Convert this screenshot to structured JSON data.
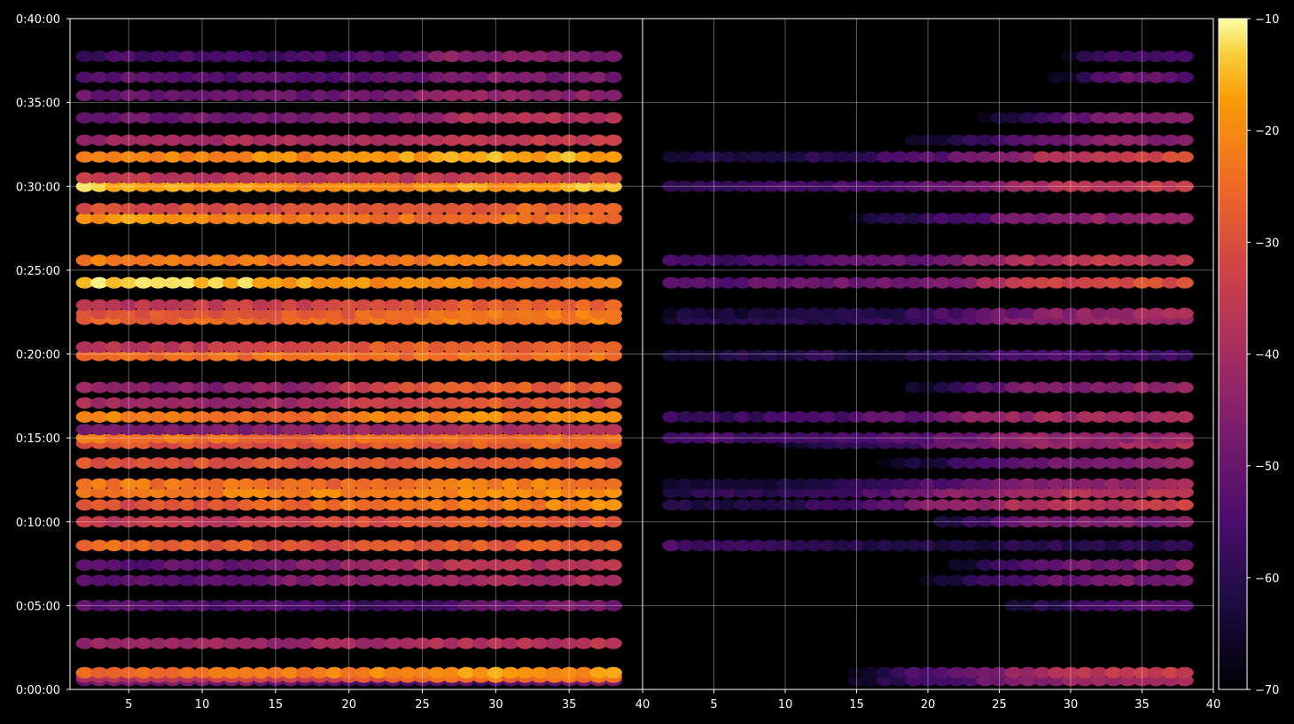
{
  "chart_data": {
    "type": "heatmap",
    "title": "",
    "xlabel": "",
    "ylabel": "",
    "grid": true,
    "background": "#000000",
    "colormap": "inferno",
    "panels": [
      {
        "name": "",
        "xlim": [
          1,
          40
        ],
        "x_ticks": [
          "5",
          "10",
          "15",
          "20",
          "25",
          "30",
          "35",
          "40"
        ],
        "bands": [
          {
            "t": 32,
            "v": [
              -50,
              -48,
              -47,
              -52,
              -55,
              -55,
              -52,
              -45
            ]
          },
          {
            "t": 44,
            "v": [
              -38,
              -36,
              -34,
              -33,
              -28,
              -24,
              -24,
              -24
            ]
          },
          {
            "t": 60,
            "v": [
              -24,
              -24,
              -22,
              -22,
              -20,
              -18,
              -19,
              -18
            ]
          },
          {
            "t": 165,
            "v": [
              -42,
              -42,
              -42,
              -42,
              -40,
              -38,
              -38,
              -37
            ]
          },
          {
            "t": 300,
            "v": [
              -52,
              -54,
              -54,
              -55,
              -57,
              -52,
              -48,
              -48
            ]
          },
          {
            "t": 390,
            "v": [
              -54,
              -52,
              -50,
              -46,
              -42,
              -40,
              -40,
              -40
            ]
          },
          {
            "t": 445,
            "v": [
              -54,
              -52,
              -50,
              -46,
              -40,
              -38,
              -38,
              -38
            ]
          },
          {
            "t": 515,
            "v": [
              -24,
              -26,
              -28,
              -30,
              -30,
              -28,
              -28,
              -28
            ]
          },
          {
            "t": 600,
            "v": [
              -36,
              -36,
              -36,
              -34,
              -30,
              -28,
              -28,
              -28
            ]
          },
          {
            "t": 660,
            "v": [
              -30,
              -30,
              -28,
              -26,
              -24,
              -22,
              -22,
              -20
            ]
          },
          {
            "t": 705,
            "v": [
              -24,
              -24,
              -22,
              -22,
              -20,
              -20,
              -20,
              -20
            ]
          },
          {
            "t": 735,
            "v": [
              -22,
              -24,
              -24,
              -26,
              -24,
              -22,
              -22,
              -22
            ]
          },
          {
            "t": 810,
            "v": [
              -30,
              -30,
              -30,
              -30,
              -28,
              -28,
              -26,
              -26
            ]
          },
          {
            "t": 880,
            "v": [
              -30,
              -30,
              -30,
              -30,
              -28,
              -28,
              -26,
              -26
            ]
          },
          {
            "t": 900,
            "v": [
              -24,
              -24,
              -26,
              -26,
              -24,
              -24,
              -24,
              -24
            ]
          },
          {
            "t": 930,
            "v": [
              -48,
              -46,
              -46,
              -44,
              -40,
              -38,
              -38,
              -38
            ]
          },
          {
            "t": 975,
            "v": [
              -22,
              -22,
              -24,
              -24,
              -22,
              -20,
              -20,
              -20
            ]
          },
          {
            "t": 1025,
            "v": [
              -40,
              -42,
              -42,
              -40,
              -34,
              -28,
              -30,
              -32
            ]
          },
          {
            "t": 1080,
            "v": [
              -44,
              -46,
              -46,
              -42,
              -30,
              -26,
              -28,
              -28
            ]
          },
          {
            "t": 1195,
            "v": [
              -24,
              -24,
              -24,
              -24,
              -24,
              -24,
              -24,
              -24
            ]
          },
          {
            "t": 1225,
            "v": [
              -36,
              -36,
              -34,
              -32,
              -28,
              -26,
              -26,
              -26
            ]
          },
          {
            "t": 1325,
            "v": [
              -28,
              -26,
              -26,
              -26,
              -24,
              -22,
              -22,
              -22
            ]
          },
          {
            "t": 1345,
            "v": [
              -30,
              -28,
              -28,
              -28,
              -26,
              -24,
              -22,
              -22
            ]
          },
          {
            "t": 1375,
            "v": [
              -38,
              -36,
              -34,
              -33,
              -30,
              -28,
              -26,
              -26
            ]
          },
          {
            "t": 1455,
            "v": [
              -12,
              -14,
              -14,
              -18,
              -20,
              -22,
              -22,
              -22
            ]
          },
          {
            "t": 1535,
            "v": [
              -22,
              -22,
              -24,
              -24,
              -24,
              -22,
              -22,
              -22
            ]
          },
          {
            "t": 1685,
            "v": [
              -18,
              -18,
              -20,
              -22,
              -24,
              -24,
              -24,
              -24
            ]
          },
          {
            "t": 1720,
            "v": [
              -30,
              -30,
              -30,
              -30,
              -28,
              -28,
              -26,
              -26
            ]
          },
          {
            "t": 1800,
            "v": [
              -14,
              -16,
              -18,
              -20,
              -20,
              -18,
              -16,
              -16
            ]
          },
          {
            "t": 1830,
            "v": [
              -36,
              -36,
              -38,
              -38,
              -36,
              -34,
              -32,
              -32
            ]
          },
          {
            "t": 1905,
            "v": [
              -20,
              -20,
              -20,
              -20,
              -18,
              -16,
              -16,
              -16
            ]
          },
          {
            "t": 1965,
            "v": [
              -42,
              -42,
              -40,
              -40,
              -38,
              -36,
              -34,
              -34
            ]
          },
          {
            "t": 2045,
            "v": [
              -50,
              -50,
              -48,
              -48,
              -46,
              -40,
              -38,
              -38
            ]
          },
          {
            "t": 2125,
            "v": [
              -50,
              -50,
              -50,
              -50,
              -48,
              -42,
              -44,
              -44
            ]
          },
          {
            "t": 2190,
            "v": [
              -52,
              -52,
              -54,
              -54,
              -52,
              -46,
              -48,
              -48
            ]
          },
          {
            "t": 2265,
            "v": [
              -56,
              -56,
              -56,
              -56,
              -54,
              -44,
              -46,
              -46
            ]
          }
        ]
      },
      {
        "name": "",
        "xlim": [
          0,
          40
        ],
        "x_ticks": [
          "5",
          "10",
          "15",
          "20",
          "25",
          "30",
          "35",
          "40"
        ],
        "bands": [
          {
            "t": 32,
            "v": [
              -74,
              -74,
              -74,
              -60,
              -52,
              -45,
              -42,
              -40
            ]
          },
          {
            "t": 60,
            "v": [
              -74,
              -74,
              -74,
              -58,
              -50,
              -40,
              -36,
              -34
            ]
          },
          {
            "t": 300,
            "v": [
              -74,
              -74,
              -74,
              -74,
              -74,
              -62,
              -56,
              -52
            ]
          },
          {
            "t": 390,
            "v": [
              -74,
              -74,
              -74,
              -74,
              -62,
              -52,
              -48,
              -46
            ]
          },
          {
            "t": 445,
            "v": [
              -74,
              -74,
              -74,
              -74,
              -64,
              -50,
              -48,
              -46
            ]
          },
          {
            "t": 515,
            "v": [
              -56,
              -58,
              -60,
              -62,
              -64,
              -60,
              -60,
              -60
            ]
          },
          {
            "t": 600,
            "v": [
              -74,
              -74,
              -74,
              -74,
              -60,
              -48,
              -46,
              -46
            ]
          },
          {
            "t": 660,
            "v": [
              -62,
              -62,
              -58,
              -50,
              -44,
              -38,
              -38,
              -34
            ]
          },
          {
            "t": 705,
            "v": [
              -60,
              -60,
              -58,
              -52,
              -44,
              -40,
              -38,
              -36
            ]
          },
          {
            "t": 735,
            "v": [
              -64,
              -64,
              -62,
              -58,
              -52,
              -46,
              -44,
              -42
            ]
          },
          {
            "t": 810,
            "v": [
              -74,
              -74,
              -74,
              -66,
              -58,
              -50,
              -46,
              -44
            ]
          },
          {
            "t": 880,
            "v": [
              -74,
              -74,
              -64,
              -58,
              -50,
              -44,
              -42,
              -40
            ]
          },
          {
            "t": 900,
            "v": [
              -56,
              -56,
              -56,
              -54,
              -50,
              -44,
              -44,
              -42
            ]
          },
          {
            "t": 975,
            "v": [
              -58,
              -58,
              -56,
              -52,
              -46,
              -42,
              -40,
              -40
            ]
          },
          {
            "t": 1080,
            "v": [
              -74,
              -74,
              -74,
              -70,
              -56,
              -46,
              -44,
              -44
            ]
          },
          {
            "t": 1195,
            "v": [
              -62,
              -62,
              -60,
              -62,
              -60,
              -56,
              -56,
              -56
            ]
          },
          {
            "t": 1325,
            "v": [
              -62,
              -62,
              -60,
              -58,
              -52,
              -44,
              -42,
              -42
            ]
          },
          {
            "t": 1345,
            "v": [
              -64,
              -64,
              -62,
              -60,
              -54,
              -46,
              -42,
              -40
            ]
          },
          {
            "t": 1455,
            "v": [
              -52,
              -52,
              -50,
              -48,
              -44,
              -34,
              -32,
              -30
            ]
          },
          {
            "t": 1535,
            "v": [
              -56,
              -56,
              -54,
              -52,
              -46,
              -38,
              -36,
              -36
            ]
          },
          {
            "t": 1685,
            "v": [
              -74,
              -74,
              -74,
              -62,
              -54,
              -46,
              -44,
              -44
            ]
          },
          {
            "t": 1800,
            "v": [
              -58,
              -58,
              -56,
              -54,
              -48,
              -40,
              -36,
              -34
            ]
          },
          {
            "t": 1905,
            "v": [
              -62,
              -62,
              -60,
              -56,
              -50,
              -40,
              -34,
              -32
            ]
          },
          {
            "t": 1965,
            "v": [
              -74,
              -74,
              -74,
              -70,
              -60,
              -50,
              -46,
              -46
            ]
          },
          {
            "t": 2045,
            "v": [
              -74,
              -74,
              -74,
              -74,
              -70,
              -56,
              -46,
              -46
            ]
          },
          {
            "t": 2190,
            "v": [
              -74,
              -74,
              -74,
              -74,
              -74,
              -74,
              -52,
              -52
            ]
          },
          {
            "t": 2265,
            "v": [
              -74,
              -74,
              -74,
              -74,
              -74,
              -74,
              -54,
              -54
            ]
          }
        ]
      }
    ],
    "y_ticks": [
      "0:00:00",
      "0:05:00",
      "0:10:00",
      "0:15:00",
      "0:20:00",
      "0:25:00",
      "0:30:00",
      "0:35:00",
      "0:40:00"
    ],
    "ylim_seconds": [
      0,
      2400
    ],
    "colorbar": {
      "range": [
        -70,
        -10
      ],
      "ticks": [
        "−10",
        "−20",
        "−30",
        "−40",
        "−50",
        "−60",
        "−70"
      ],
      "tick_values": [
        -10,
        -20,
        -30,
        -40,
        -50,
        -60,
        -70
      ]
    }
  }
}
